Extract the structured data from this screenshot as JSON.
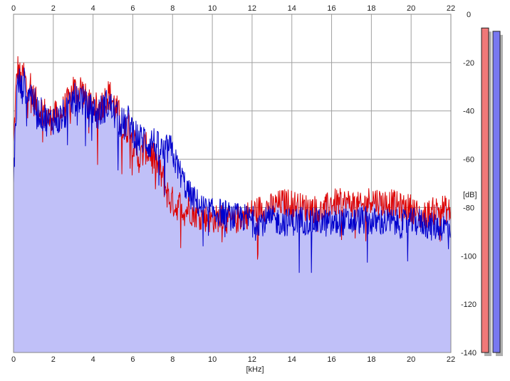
{
  "chart_data": {
    "type": "line",
    "title": "",
    "xlabel": "[kHz]",
    "ylabel": "[dB]",
    "xlim": [
      0,
      22
    ],
    "ylim": [
      -140,
      0
    ],
    "x_ticks": [
      0,
      2,
      4,
      6,
      8,
      10,
      12,
      14,
      16,
      18,
      20,
      22
    ],
    "y_ticks": [
      0,
      -20,
      -40,
      -60,
      -80,
      -100,
      -120,
      -140
    ],
    "grid": true,
    "x_tick_labels_top_and_bottom": true,
    "y_axis_side": "right",
    "fill_color": "#c0c0f8",
    "series": [
      {
        "color": "#dd0000",
        "x": [
          0,
          0.1,
          0.2,
          0.3,
          0.4,
          0.5,
          0.6,
          0.7,
          0.8,
          1,
          1.2,
          1.5,
          1.8,
          2,
          2.2,
          2.5,
          2.8,
          3,
          3.2,
          3.4,
          3.6,
          3.8,
          4,
          4.2,
          4.4,
          4.6,
          4.8,
          5,
          5.3,
          5.6,
          5.8,
          6,
          6.2,
          6.4,
          6.6,
          6.8,
          7,
          7.2,
          7.4,
          7.6,
          7.8,
          8,
          8.2,
          8.4,
          8.6,
          8.8,
          9,
          9.5,
          10,
          10.5,
          11,
          11.5,
          12,
          12.5,
          13,
          13.5,
          14,
          14.5,
          15,
          15.5,
          16,
          16.5,
          17,
          17.5,
          18,
          18.5,
          19,
          19.5,
          20,
          20.5,
          21,
          21.5,
          22
        ],
        "values": [
          -55,
          -35,
          -22,
          -25,
          -30,
          -24,
          -28,
          -32,
          -27,
          -35,
          -38,
          -40,
          -44,
          -42,
          -43,
          -40,
          -36,
          -30,
          -33,
          -30,
          -35,
          -38,
          -36,
          -40,
          -38,
          -35,
          -33,
          -36,
          -42,
          -50,
          -45,
          -52,
          -58,
          -60,
          -55,
          -57,
          -58,
          -62,
          -66,
          -70,
          -76,
          -78,
          -80,
          -78,
          -82,
          -80,
          -82,
          -84,
          -85,
          -84,
          -86,
          -84,
          -82,
          -80,
          -80,
          -78,
          -78,
          -80,
          -80,
          -82,
          -78,
          -78,
          -78,
          -80,
          -76,
          -78,
          -78,
          -80,
          -80,
          -84,
          -82,
          -80,
          -82
        ]
      },
      {
        "color": "#0000cc",
        "x": [
          0,
          0.1,
          0.2,
          0.3,
          0.4,
          0.5,
          0.6,
          0.7,
          0.8,
          1,
          1.2,
          1.5,
          1.8,
          2,
          2.2,
          2.5,
          2.8,
          3,
          3.2,
          3.4,
          3.6,
          3.8,
          4,
          4.2,
          4.4,
          4.6,
          4.8,
          5,
          5.3,
          5.6,
          5.8,
          6,
          6.2,
          6.4,
          6.6,
          6.8,
          7,
          7.2,
          7.4,
          7.6,
          7.8,
          8,
          8.2,
          8.4,
          8.6,
          8.8,
          9,
          9.5,
          10,
          10.5,
          11,
          11.5,
          12,
          12.5,
          13,
          13.5,
          14,
          14.5,
          15,
          15.5,
          16,
          16.5,
          17,
          17.5,
          18,
          18.5,
          19,
          19.5,
          20,
          20.5,
          21,
          21.5,
          22
        ],
        "values": [
          -70,
          -45,
          -30,
          -28,
          -32,
          -28,
          -30,
          -33,
          -30,
          -36,
          -40,
          -42,
          -45,
          -43,
          -44,
          -42,
          -40,
          -35,
          -36,
          -34,
          -38,
          -40,
          -39,
          -42,
          -40,
          -38,
          -37,
          -40,
          -44,
          -46,
          -44,
          -48,
          -50,
          -52,
          -51,
          -54,
          -52,
          -55,
          -56,
          -58,
          -55,
          -58,
          -62,
          -66,
          -70,
          -74,
          -76,
          -80,
          -82,
          -82,
          -84,
          -84,
          -85,
          -86,
          -85,
          -86,
          -86,
          -85,
          -86,
          -86,
          -87,
          -86,
          -86,
          -85,
          -86,
          -86,
          -86,
          -87,
          -86,
          -86,
          -88,
          -88,
          -88
        ]
      }
    ],
    "level_meters": [
      {
        "color": "#f07878",
        "level_fraction": 0.98
      },
      {
        "color": "#7878f0",
        "level_fraction": 0.97
      }
    ]
  }
}
